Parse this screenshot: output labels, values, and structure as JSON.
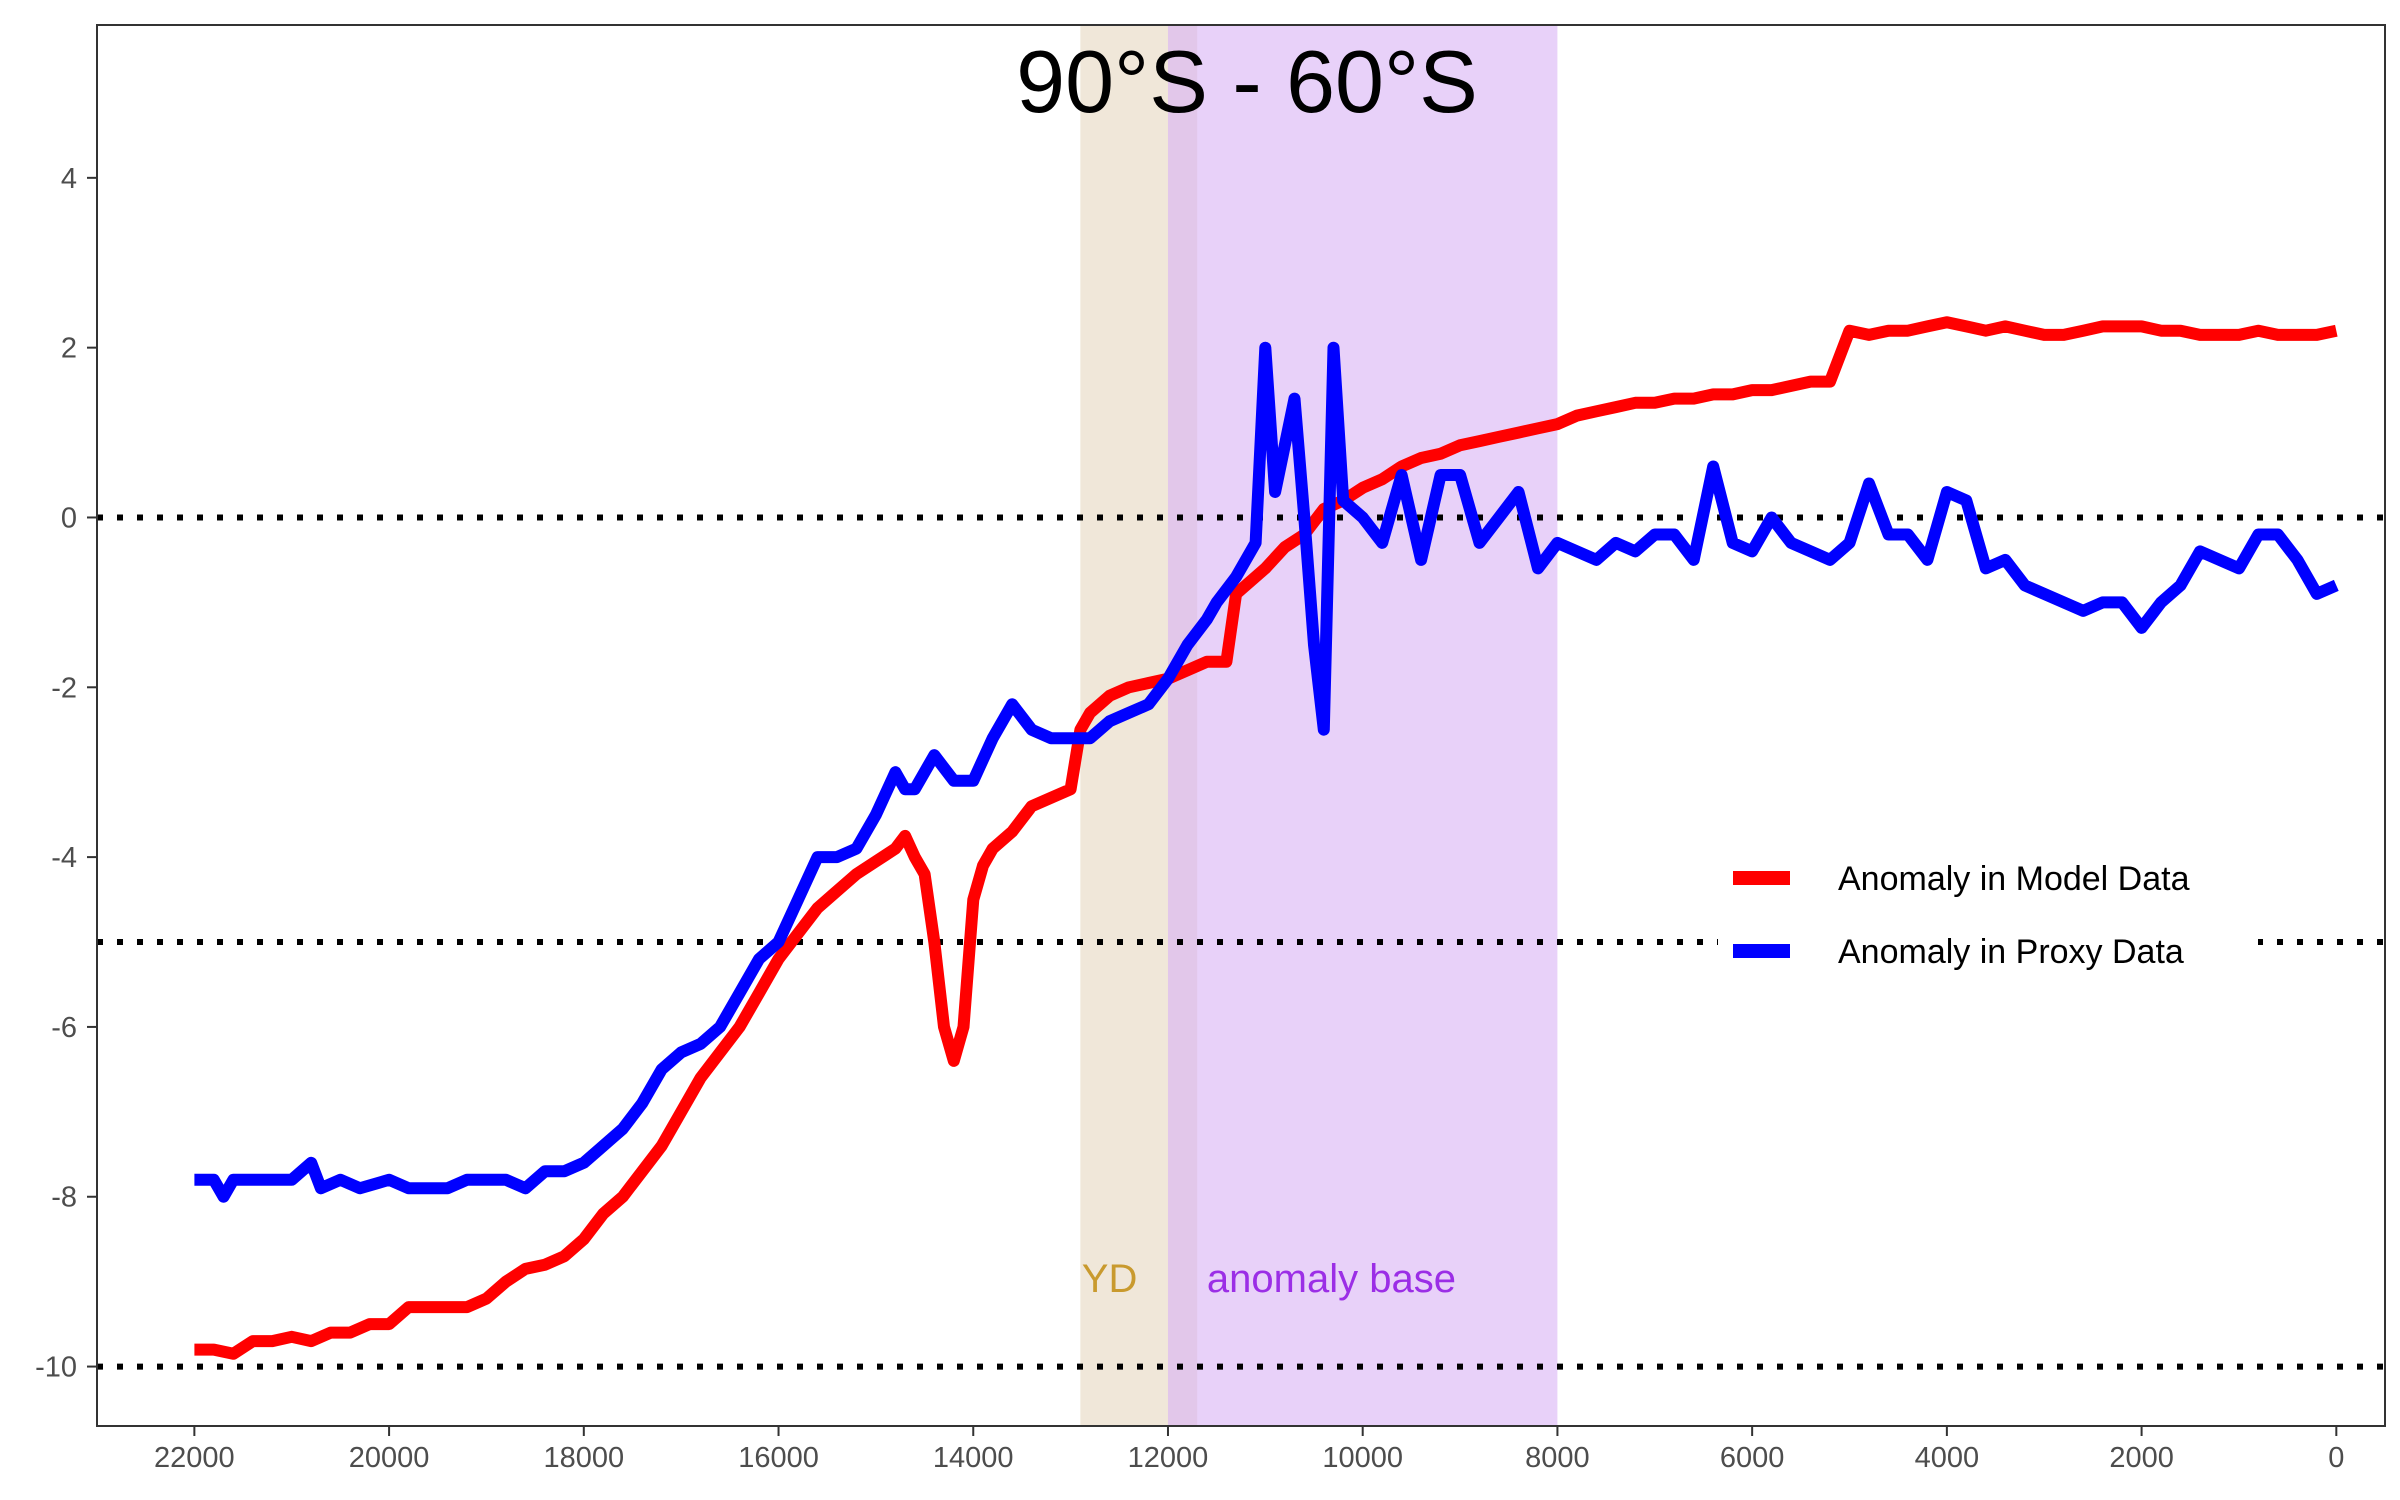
{
  "chart_data": {
    "type": "line",
    "title": "90°S - 60°S",
    "xlabel": "",
    "ylabel": "",
    "xlim": [
      23000,
      -500
    ],
    "ylim": [
      -10.7,
      5.8
    ],
    "x_reversed": true,
    "grid": false,
    "x_ticks": [
      22000,
      20000,
      18000,
      16000,
      14000,
      12000,
      10000,
      8000,
      6000,
      4000,
      2000,
      0
    ],
    "y_ticks": [
      4,
      2,
      0,
      -2,
      -4,
      -6,
      -8,
      -10
    ],
    "reference_lines": [
      0,
      -5,
      -10
    ],
    "reference_line_style": "dotted",
    "legend_position": "right",
    "bands": [
      {
        "label": "YD",
        "x_from": 12900,
        "x_to": 11700,
        "color": "#e6d7c0",
        "label_color": "#c99a2e"
      },
      {
        "label": "anomaly base",
        "x_from": 12000,
        "x_to": 8000,
        "color": "#d9b3f5",
        "label_color": "#9b2ee6"
      }
    ],
    "series": [
      {
        "name": "Anomaly in Model Data",
        "color": "#ff0000",
        "points": [
          [
            22000,
            -9.8
          ],
          [
            21800,
            -9.8
          ],
          [
            21600,
            -9.85
          ],
          [
            21400,
            -9.7
          ],
          [
            21200,
            -9.7
          ],
          [
            21000,
            -9.65
          ],
          [
            20800,
            -9.7
          ],
          [
            20600,
            -9.6
          ],
          [
            20400,
            -9.6
          ],
          [
            20200,
            -9.5
          ],
          [
            20000,
            -9.5
          ],
          [
            19800,
            -9.3
          ],
          [
            19600,
            -9.3
          ],
          [
            19400,
            -9.3
          ],
          [
            19200,
            -9.3
          ],
          [
            19000,
            -9.2
          ],
          [
            18800,
            -9.0
          ],
          [
            18600,
            -8.85
          ],
          [
            18400,
            -8.8
          ],
          [
            18200,
            -8.7
          ],
          [
            18000,
            -8.5
          ],
          [
            17800,
            -8.2
          ],
          [
            17600,
            -8.0
          ],
          [
            17400,
            -7.7
          ],
          [
            17200,
            -7.4
          ],
          [
            17000,
            -7.0
          ],
          [
            16800,
            -6.6
          ],
          [
            16600,
            -6.3
          ],
          [
            16400,
            -6.0
          ],
          [
            16200,
            -5.6
          ],
          [
            16000,
            -5.2
          ],
          [
            15800,
            -4.9
          ],
          [
            15600,
            -4.6
          ],
          [
            15400,
            -4.4
          ],
          [
            15200,
            -4.2
          ],
          [
            15000,
            -4.05
          ],
          [
            14800,
            -3.9
          ],
          [
            14700,
            -3.75
          ],
          [
            14600,
            -4.0
          ],
          [
            14500,
            -4.2
          ],
          [
            14400,
            -5.0
          ],
          [
            14300,
            -6.0
          ],
          [
            14200,
            -6.4
          ],
          [
            14100,
            -6.0
          ],
          [
            14000,
            -4.5
          ],
          [
            13900,
            -4.1
          ],
          [
            13800,
            -3.9
          ],
          [
            13600,
            -3.7
          ],
          [
            13400,
            -3.4
          ],
          [
            13200,
            -3.3
          ],
          [
            13000,
            -3.2
          ],
          [
            12900,
            -2.5
          ],
          [
            12800,
            -2.3
          ],
          [
            12600,
            -2.1
          ],
          [
            12400,
            -2.0
          ],
          [
            12200,
            -1.95
          ],
          [
            12000,
            -1.9
          ],
          [
            11800,
            -1.8
          ],
          [
            11600,
            -1.7
          ],
          [
            11400,
            -1.7
          ],
          [
            11300,
            -0.9
          ],
          [
            11000,
            -0.6
          ],
          [
            10800,
            -0.35
          ],
          [
            10600,
            -0.2
          ],
          [
            10400,
            0.1
          ],
          [
            10200,
            0.2
          ],
          [
            10000,
            0.35
          ],
          [
            9800,
            0.45
          ],
          [
            9600,
            0.6
          ],
          [
            9400,
            0.7
          ],
          [
            9200,
            0.75
          ],
          [
            9000,
            0.85
          ],
          [
            8800,
            0.9
          ],
          [
            8600,
            0.95
          ],
          [
            8400,
            1.0
          ],
          [
            8200,
            1.05
          ],
          [
            8000,
            1.1
          ],
          [
            7800,
            1.2
          ],
          [
            7600,
            1.25
          ],
          [
            7400,
            1.3
          ],
          [
            7200,
            1.35
          ],
          [
            7000,
            1.35
          ],
          [
            6800,
            1.4
          ],
          [
            6600,
            1.4
          ],
          [
            6400,
            1.45
          ],
          [
            6200,
            1.45
          ],
          [
            6000,
            1.5
          ],
          [
            5800,
            1.5
          ],
          [
            5600,
            1.55
          ],
          [
            5400,
            1.6
          ],
          [
            5200,
            1.6
          ],
          [
            5000,
            2.2
          ],
          [
            4800,
            2.15
          ],
          [
            4600,
            2.2
          ],
          [
            4400,
            2.2
          ],
          [
            4200,
            2.25
          ],
          [
            4000,
            2.3
          ],
          [
            3800,
            2.25
          ],
          [
            3600,
            2.2
          ],
          [
            3400,
            2.25
          ],
          [
            3200,
            2.2
          ],
          [
            3000,
            2.15
          ],
          [
            2800,
            2.15
          ],
          [
            2600,
            2.2
          ],
          [
            2400,
            2.25
          ],
          [
            2200,
            2.25
          ],
          [
            2000,
            2.25
          ],
          [
            1800,
            2.2
          ],
          [
            1600,
            2.2
          ],
          [
            1400,
            2.15
          ],
          [
            1200,
            2.15
          ],
          [
            1000,
            2.15
          ],
          [
            800,
            2.2
          ],
          [
            600,
            2.15
          ],
          [
            400,
            2.15
          ],
          [
            200,
            2.15
          ],
          [
            0,
            2.2
          ]
        ]
      },
      {
        "name": "Anomaly in Proxy Data",
        "color": "#0000ff",
        "points": [
          [
            22000,
            -7.8
          ],
          [
            21800,
            -7.8
          ],
          [
            21700,
            -8.0
          ],
          [
            21600,
            -7.8
          ],
          [
            21400,
            -7.8
          ],
          [
            21200,
            -7.8
          ],
          [
            21000,
            -7.8
          ],
          [
            20800,
            -7.6
          ],
          [
            20700,
            -7.9
          ],
          [
            20500,
            -7.8
          ],
          [
            20300,
            -7.9
          ],
          [
            20000,
            -7.8
          ],
          [
            19800,
            -7.9
          ],
          [
            19600,
            -7.9
          ],
          [
            19400,
            -7.9
          ],
          [
            19200,
            -7.8
          ],
          [
            19000,
            -7.8
          ],
          [
            18800,
            -7.8
          ],
          [
            18600,
            -7.9
          ],
          [
            18400,
            -7.7
          ],
          [
            18200,
            -7.7
          ],
          [
            18000,
            -7.6
          ],
          [
            17800,
            -7.4
          ],
          [
            17600,
            -7.2
          ],
          [
            17400,
            -6.9
          ],
          [
            17200,
            -6.5
          ],
          [
            17000,
            -6.3
          ],
          [
            16800,
            -6.2
          ],
          [
            16600,
            -6.0
          ],
          [
            16400,
            -5.6
          ],
          [
            16200,
            -5.2
          ],
          [
            16000,
            -5.0
          ],
          [
            15800,
            -4.5
          ],
          [
            15600,
            -4.0
          ],
          [
            15400,
            -4.0
          ],
          [
            15200,
            -3.9
          ],
          [
            15000,
            -3.5
          ],
          [
            14800,
            -3.0
          ],
          [
            14700,
            -3.2
          ],
          [
            14600,
            -3.2
          ],
          [
            14400,
            -2.8
          ],
          [
            14200,
            -3.1
          ],
          [
            14000,
            -3.1
          ],
          [
            13800,
            -2.6
          ],
          [
            13600,
            -2.2
          ],
          [
            13400,
            -2.5
          ],
          [
            13200,
            -2.6
          ],
          [
            13000,
            -2.6
          ],
          [
            12800,
            -2.6
          ],
          [
            12600,
            -2.4
          ],
          [
            12400,
            -2.3
          ],
          [
            12200,
            -2.2
          ],
          [
            12000,
            -1.9
          ],
          [
            11800,
            -1.5
          ],
          [
            11600,
            -1.2
          ],
          [
            11500,
            -1.0
          ],
          [
            11300,
            -0.7
          ],
          [
            11100,
            -0.3
          ],
          [
            11000,
            2.0
          ],
          [
            10900,
            0.3
          ],
          [
            10700,
            1.4
          ],
          [
            10600,
            0.0
          ],
          [
            10500,
            -1.5
          ],
          [
            10400,
            -2.5
          ],
          [
            10300,
            2.0
          ],
          [
            10200,
            0.2
          ],
          [
            10000,
            0.0
          ],
          [
            9800,
            -0.3
          ],
          [
            9600,
            0.5
          ],
          [
            9400,
            -0.5
          ],
          [
            9200,
            0.5
          ],
          [
            9000,
            0.5
          ],
          [
            8800,
            -0.3
          ],
          [
            8600,
            0.0
          ],
          [
            8400,
            0.3
          ],
          [
            8200,
            -0.6
          ],
          [
            8000,
            -0.3
          ],
          [
            7800,
            -0.4
          ],
          [
            7600,
            -0.5
          ],
          [
            7400,
            -0.3
          ],
          [
            7200,
            -0.4
          ],
          [
            7000,
            -0.2
          ],
          [
            6800,
            -0.2
          ],
          [
            6600,
            -0.5
          ],
          [
            6400,
            0.6
          ],
          [
            6200,
            -0.3
          ],
          [
            6000,
            -0.4
          ],
          [
            5800,
            0.0
          ],
          [
            5600,
            -0.3
          ],
          [
            5400,
            -0.4
          ],
          [
            5200,
            -0.5
          ],
          [
            5000,
            -0.3
          ],
          [
            4800,
            0.4
          ],
          [
            4600,
            -0.2
          ],
          [
            4400,
            -0.2
          ],
          [
            4200,
            -0.5
          ],
          [
            4000,
            0.3
          ],
          [
            3800,
            0.2
          ],
          [
            3600,
            -0.6
          ],
          [
            3400,
            -0.5
          ],
          [
            3200,
            -0.8
          ],
          [
            3000,
            -0.9
          ],
          [
            2800,
            -1.0
          ],
          [
            2600,
            -1.1
          ],
          [
            2400,
            -1.0
          ],
          [
            2200,
            -1.0
          ],
          [
            2000,
            -1.3
          ],
          [
            1800,
            -1.0
          ],
          [
            1600,
            -0.8
          ],
          [
            1400,
            -0.4
          ],
          [
            1200,
            -0.5
          ],
          [
            1000,
            -0.6
          ],
          [
            800,
            -0.2
          ],
          [
            600,
            -0.2
          ],
          [
            400,
            -0.5
          ],
          [
            200,
            -0.9
          ],
          [
            0,
            -0.8
          ]
        ]
      }
    ]
  }
}
